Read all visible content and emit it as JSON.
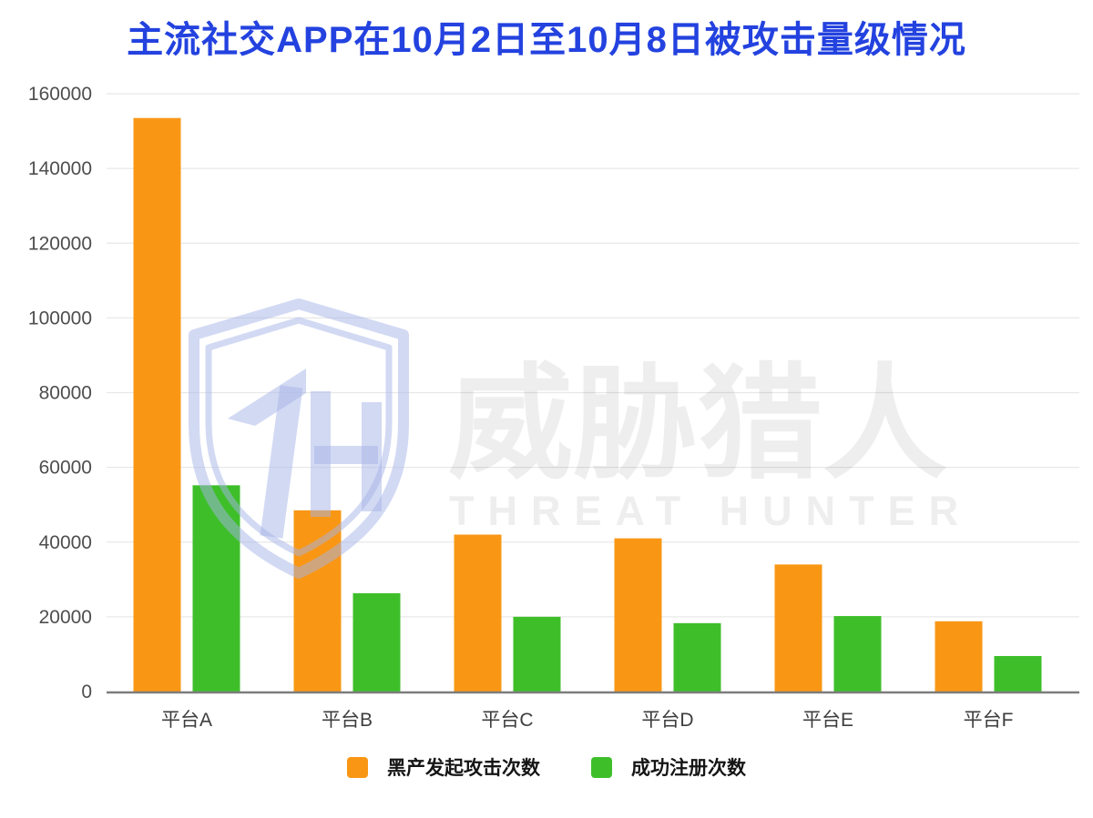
{
  "page": {
    "title_color": "#2342DF",
    "background": "#FFFFFF"
  },
  "watermark": {
    "cn": "威胁猎人",
    "en": "THREAT HUNTER",
    "shield_color": "rgba(165,180,232,0.5)",
    "text_color": "rgba(35,35,45,0.08)"
  },
  "chart_data": {
    "type": "bar",
    "title": "主流社交APP在10月2日至10月8日被攻击量级情况",
    "categories": [
      "平台A",
      "平台B",
      "平台C",
      "平台D",
      "平台E",
      "平台F"
    ],
    "series": [
      {
        "name": "黑产发起攻击次数",
        "color": "#F99715",
        "values": [
          153500,
          48500,
          42000,
          41000,
          34000,
          18800
        ]
      },
      {
        "name": "成功注册次数",
        "color": "#3EBF2A",
        "values": [
          55200,
          26300,
          20000,
          18300,
          20200,
          9500
        ]
      }
    ],
    "ylim": [
      0,
      160000
    ],
    "ytick_step": 20000,
    "grid": true,
    "legend_position": "bottom",
    "axis_label_color": "#4e4e4e",
    "category_label_color": "#3d3d3d",
    "gridline_color": "#e8e8e8",
    "axis_line_color": "#7d7d7d"
  }
}
